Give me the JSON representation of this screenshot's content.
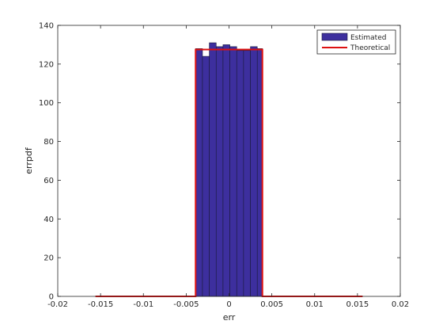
{
  "chart_data": {
    "type": "bar",
    "xlabel": "err",
    "ylabel": "errpdf",
    "xlim": [
      -0.02,
      0.02
    ],
    "ylim": [
      0,
      140
    ],
    "xticks": [
      -0.02,
      -0.015,
      -0.01,
      -0.005,
      0,
      0.005,
      0.01,
      0.015,
      0.02
    ],
    "xtick_labels": [
      "-0.02",
      "-0.015",
      "-0.01",
      "-0.005",
      "0",
      "0.005",
      "0.01",
      "0.015",
      "0.02"
    ],
    "yticks": [
      0,
      20,
      40,
      60,
      80,
      100,
      120,
      140
    ],
    "ytick_labels": [
      "0",
      "20",
      "40",
      "60",
      "80",
      "100",
      "120",
      "140"
    ],
    "grid": false,
    "legend_position": "top-right",
    "legend": [
      "Estimated",
      "Theoretical"
    ],
    "series": [
      {
        "name": "Estimated",
        "type": "bar",
        "color": "#3d2f9e",
        "edge_color": "#1a1a3a",
        "bin_edges": [
          -0.0039,
          -0.0031,
          -0.0023,
          -0.0015,
          -0.0007,
          0.0001,
          0.0009,
          0.0017,
          0.0025,
          0.0033,
          0.0039
        ],
        "values": [
          128,
          124,
          131,
          129,
          130,
          129,
          127,
          127,
          129,
          128
        ]
      },
      {
        "name": "Theoretical",
        "type": "line",
        "color": "#dd1111",
        "x": [
          -0.0156,
          -0.0039,
          -0.0039,
          0.0039,
          0.0039,
          0.0156
        ],
        "y": [
          0,
          0,
          127.5,
          127.5,
          0,
          0
        ]
      }
    ]
  }
}
